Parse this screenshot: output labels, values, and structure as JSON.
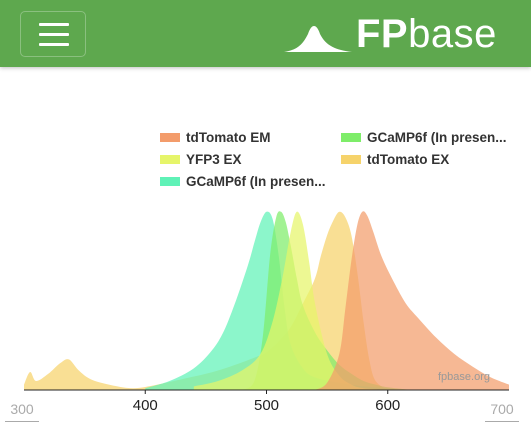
{
  "navbar": {
    "brand_fp": "FP",
    "brand_base": "base",
    "background": "#5ea84e"
  },
  "controls": {
    "min_wavelength": "300",
    "max_wavelength": "700"
  },
  "chart_data": {
    "type": "area",
    "title": "",
    "xlabel": "",
    "ylabel": "",
    "xlim": [
      300,
      700
    ],
    "ylim": [
      0,
      1
    ],
    "x_ticks": [
      "400",
      "500",
      "600"
    ],
    "watermark": "fpbase.org",
    "legend": [
      {
        "label": "tdTomato EM",
        "color": "#f39c6b"
      },
      {
        "label": "GCaMP6f (In presen...",
        "color": "#7eed69"
      },
      {
        "label": "YFP3 EX",
        "color": "#e6f56a"
      },
      {
        "label": "tdTomato EX",
        "color": "#f6d36b"
      },
      {
        "label": "GCaMP6f (In presen...",
        "color": "#5ff2b7"
      }
    ],
    "series": [
      {
        "name": "tdTomato EX",
        "color": "#f6d36b",
        "x": [
          300,
          305,
          310,
          320,
          330,
          337,
          345,
          355,
          370,
          390,
          410,
          430,
          450,
          470,
          490,
          500,
          510,
          520,
          530,
          540,
          545,
          550,
          555,
          560,
          565,
          570,
          575,
          580,
          585,
          590,
          600
        ],
        "y": [
          0.03,
          0.1,
          0.05,
          0.09,
          0.15,
          0.17,
          0.11,
          0.06,
          0.03,
          0.01,
          0.03,
          0.06,
          0.09,
          0.13,
          0.18,
          0.21,
          0.27,
          0.35,
          0.48,
          0.62,
          0.75,
          0.86,
          0.94,
          0.99,
          0.96,
          0.86,
          0.65,
          0.38,
          0.16,
          0.05,
          0.0
        ]
      },
      {
        "name": "GCaMP6f (In presen... EX",
        "color": "#5ff2b7",
        "x": [
          400,
          420,
          440,
          455,
          465,
          475,
          485,
          490,
          495,
          500,
          505,
          510,
          515,
          520,
          530,
          540,
          560,
          580,
          600,
          610
        ],
        "y": [
          0.01,
          0.05,
          0.12,
          0.22,
          0.33,
          0.5,
          0.7,
          0.82,
          0.93,
          0.99,
          0.95,
          0.75,
          0.45,
          0.25,
          0.12,
          0.07,
          0.04,
          0.02,
          0.01,
          0.0
        ]
      },
      {
        "name": "GCaMP6f (In presen... EM",
        "color": "#7eed69",
        "x": [
          480,
          490,
          497,
          503,
          508,
          512,
          516,
          520,
          525,
          530,
          540,
          550,
          560,
          570,
          580,
          590,
          600,
          620
        ],
        "y": [
          0.0,
          0.05,
          0.3,
          0.75,
          0.96,
          0.99,
          0.93,
          0.8,
          0.62,
          0.47,
          0.32,
          0.22,
          0.14,
          0.09,
          0.05,
          0.03,
          0.015,
          0.0
        ]
      },
      {
        "name": "YFP3 EX",
        "color": "#e6f56a",
        "x": [
          440,
          460,
          480,
          495,
          505,
          513,
          520,
          525,
          530,
          535,
          540,
          550,
          560,
          570,
          580,
          600
        ],
        "y": [
          0.02,
          0.05,
          0.11,
          0.2,
          0.38,
          0.62,
          0.88,
          0.99,
          0.92,
          0.72,
          0.48,
          0.2,
          0.08,
          0.03,
          0.01,
          0.0
        ]
      },
      {
        "name": "tdTomato EM",
        "color": "#f39c6b",
        "x": [
          540,
          550,
          560,
          565,
          570,
          575,
          579,
          583,
          588,
          595,
          605,
          615,
          625,
          640,
          655,
          670,
          685,
          700
        ],
        "y": [
          0.0,
          0.04,
          0.2,
          0.45,
          0.72,
          0.92,
          0.99,
          0.97,
          0.88,
          0.74,
          0.6,
          0.48,
          0.4,
          0.29,
          0.2,
          0.13,
          0.07,
          0.03
        ]
      }
    ]
  }
}
